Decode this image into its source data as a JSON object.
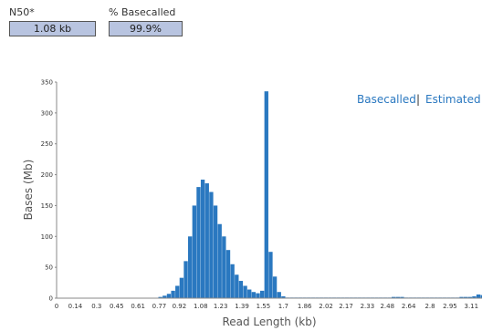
{
  "stats": {
    "n50": {
      "label": "N50*",
      "value": "1.08 kb"
    },
    "basecalled_pct": {
      "label": "% Basecalled",
      "value": "99.9%"
    }
  },
  "colors": {
    "bar": "#2a78c0",
    "axis": "#888888",
    "accent": "#2a78c0"
  },
  "legend": {
    "basecalled": "Basecalled",
    "separator": "|",
    "estimated": "Estimated"
  },
  "chart_data": {
    "type": "bar",
    "xlabel": "Read Length (kb)",
    "ylabel": "Bases (Mb)",
    "ylim": [
      0,
      350
    ],
    "xlim": [
      0,
      3.19
    ],
    "bin_width": 0.0318,
    "yticks": [
      "0",
      "50",
      "100",
      "150",
      "200",
      "250",
      "300",
      "350"
    ],
    "xticks": [
      "0",
      "0.14",
      "0.3",
      "0.45",
      "0.61",
      "0.77",
      "0.92",
      "1.08",
      "1.23",
      "1.39",
      "1.55",
      "1.7",
      "1.86",
      "2.02",
      "2.17",
      "2.33",
      "2.48",
      "2.64",
      "2.8",
      "2.95",
      "3.11"
    ],
    "legend_position": "top-right",
    "grid": false,
    "series": [
      {
        "values": [
          0.5,
          0.5,
          0.5,
          0.5,
          0.5,
          0.5,
          0.5,
          0.5,
          0.5,
          0.5,
          0.5,
          0.5,
          0.5,
          0.5,
          0.5,
          0.5,
          0.5,
          0.5,
          0.5,
          0.5,
          0.5,
          0.5,
          0.5,
          0.5,
          2,
          4,
          7,
          12,
          20,
          33,
          60,
          100,
          150,
          180,
          192,
          186,
          172,
          150,
          120,
          100,
          78,
          55,
          38,
          28,
          20,
          14,
          10,
          8,
          12,
          335,
          75,
          35,
          10,
          3,
          1,
          1,
          1,
          1,
          1,
          1,
          1,
          1,
          1,
          1,
          1,
          1,
          1,
          1,
          1,
          1,
          1,
          1,
          1,
          1,
          1,
          1,
          1,
          1,
          1,
          2,
          2,
          2,
          1,
          1,
          1,
          1,
          1,
          1,
          1,
          1,
          1,
          1,
          1,
          1,
          1,
          2,
          2,
          2,
          3,
          6,
          5,
          4,
          7
        ]
      }
    ]
  }
}
